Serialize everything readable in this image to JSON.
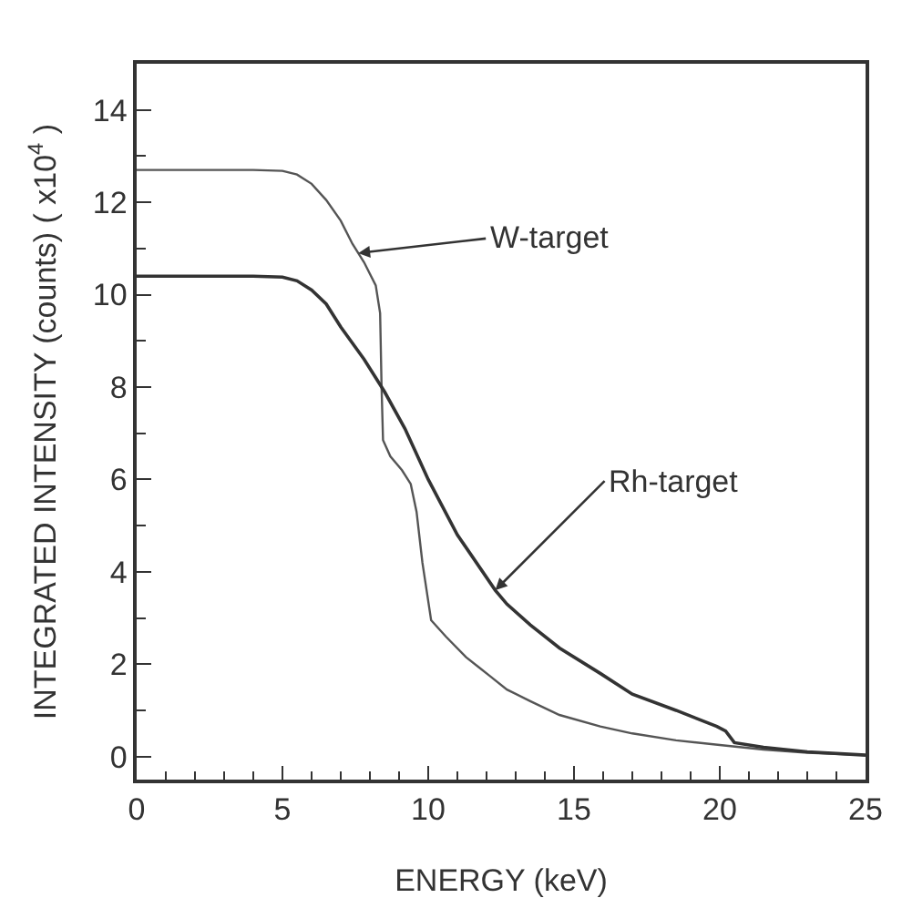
{
  "chart_data": {
    "type": "line",
    "xlabel": "ENERGY (keV)",
    "ylabel": "INTEGRATED INTENSITY (counts) ( x10$^{4}$ )",
    "xlim": [
      0,
      25
    ],
    "xticks": [
      0,
      5,
      10,
      15,
      20,
      25
    ],
    "ylim": [
      -0.5,
      15
    ],
    "yticks": [
      0,
      2,
      4,
      6,
      8,
      10,
      12,
      14
    ],
    "marker": "none",
    "line_style": "solid",
    "series": [
      {
        "color": "#555555",
        "x": [
          0,
          2,
          4,
          5,
          5.5,
          6,
          6.5,
          7,
          7.4,
          7.8,
          8.2,
          8.35,
          8.4,
          8.45,
          8.7,
          9.1,
          9.4,
          9.6,
          9.8,
          10.1,
          10.6,
          11.3,
          11.7,
          12.1,
          12.7,
          13.5,
          14.5,
          15.9,
          17,
          18.5,
          20,
          21.5,
          23,
          25
        ],
        "values": [
          12.7,
          12.7,
          12.7,
          12.68,
          12.6,
          12.4,
          12.05,
          11.6,
          11.1,
          10.7,
          10.2,
          9.6,
          8,
          6.85,
          6.5,
          6.2,
          5.9,
          5.3,
          4.2,
          2.95,
          2.6,
          2.15,
          1.95,
          1.75,
          1.45,
          1.2,
          0.9,
          0.65,
          0.5,
          0.35,
          0.25,
          0.15,
          0.08,
          0.03
        ]
      },
      {
        "color": "#333333",
        "x": [
          0,
          2,
          4,
          5,
          5.5,
          6,
          6.5,
          7,
          7.4,
          7.8,
          8.5,
          9.2,
          10,
          11,
          12.3,
          12.7,
          13.5,
          14.5,
          15.9,
          17,
          18.5,
          19.9,
          20.2,
          20.5,
          21.5,
          23,
          25
        ],
        "values": [
          10.4,
          10.4,
          10.4,
          10.38,
          10.3,
          10.1,
          9.8,
          9.3,
          8.95,
          8.6,
          7.9,
          7.1,
          6.0,
          4.8,
          3.6,
          3.3,
          2.85,
          2.35,
          1.8,
          1.35,
          1.0,
          0.65,
          0.55,
          0.3,
          0.2,
          0.1,
          0.03
        ]
      }
    ],
    "annotations": [
      {
        "text": "W-target",
        "x": 7.6,
        "y": 10.9
      },
      {
        "text": "Rh-target",
        "x": 12.3,
        "y": 3.6
      }
    ]
  }
}
